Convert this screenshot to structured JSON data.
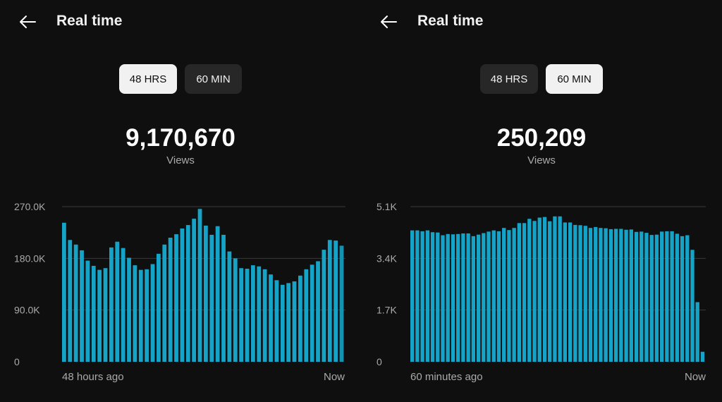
{
  "colors": {
    "bar": "#15a3c7",
    "bar_dim": "#1392b2",
    "grid": "#3a3a3a"
  },
  "panels": [
    {
      "title": "Real time",
      "back_icon": "arrow-left-icon",
      "toggles": [
        {
          "label": "48 HRS",
          "active": true
        },
        {
          "label": "60 MIN",
          "active": false
        }
      ],
      "total": "9,170,670",
      "total_label": "Views",
      "x_start_label": "48 hours ago",
      "x_end_label": "Now",
      "chart_data": {
        "type": "bar",
        "ylim": [
          0,
          270000
        ],
        "yticks": [
          "0",
          "90.0K",
          "180.0K",
          "270.0K"
        ],
        "xlabel_start": "48 hours ago",
        "xlabel_end": "Now",
        "values": [
          242000,
          212000,
          204000,
          194000,
          176000,
          167000,
          160000,
          163000,
          199000,
          209000,
          198000,
          181000,
          168000,
          160000,
          161000,
          170000,
          188000,
          204000,
          216000,
          222000,
          232000,
          238000,
          249000,
          266000,
          237000,
          221000,
          236000,
          221000,
          192000,
          180000,
          163000,
          162000,
          168000,
          166000,
          161000,
          152000,
          142000,
          134000,
          137000,
          140000,
          150000,
          161000,
          169000,
          175000,
          195000,
          212000,
          211000,
          202000
        ]
      }
    },
    {
      "title": "Real time",
      "back_icon": "arrow-left-icon",
      "toggles": [
        {
          "label": "48 HRS",
          "active": false
        },
        {
          "label": "60 MIN",
          "active": true
        }
      ],
      "total": "250,209",
      "total_label": "Views",
      "x_start_label": "60 minutes ago",
      "x_end_label": "Now",
      "chart_data": {
        "type": "bar",
        "ylim": [
          0,
          5100
        ],
        "yticks": [
          "0",
          "1.7K",
          "3.4K",
          "5.1K"
        ],
        "xlabel_start": "60 minutes ago",
        "xlabel_end": "Now",
        "values": [
          4320,
          4320,
          4290,
          4320,
          4260,
          4250,
          4160,
          4200,
          4190,
          4200,
          4220,
          4220,
          4130,
          4180,
          4230,
          4280,
          4320,
          4290,
          4400,
          4330,
          4400,
          4560,
          4560,
          4700,
          4630,
          4740,
          4760,
          4620,
          4780,
          4780,
          4580,
          4580,
          4500,
          4490,
          4470,
          4400,
          4430,
          4400,
          4390,
          4360,
          4370,
          4370,
          4340,
          4350,
          4270,
          4280,
          4240,
          4170,
          4180,
          4280,
          4290,
          4290,
          4210,
          4130,
          4160,
          3680,
          1960,
          330
        ]
      }
    }
  ]
}
